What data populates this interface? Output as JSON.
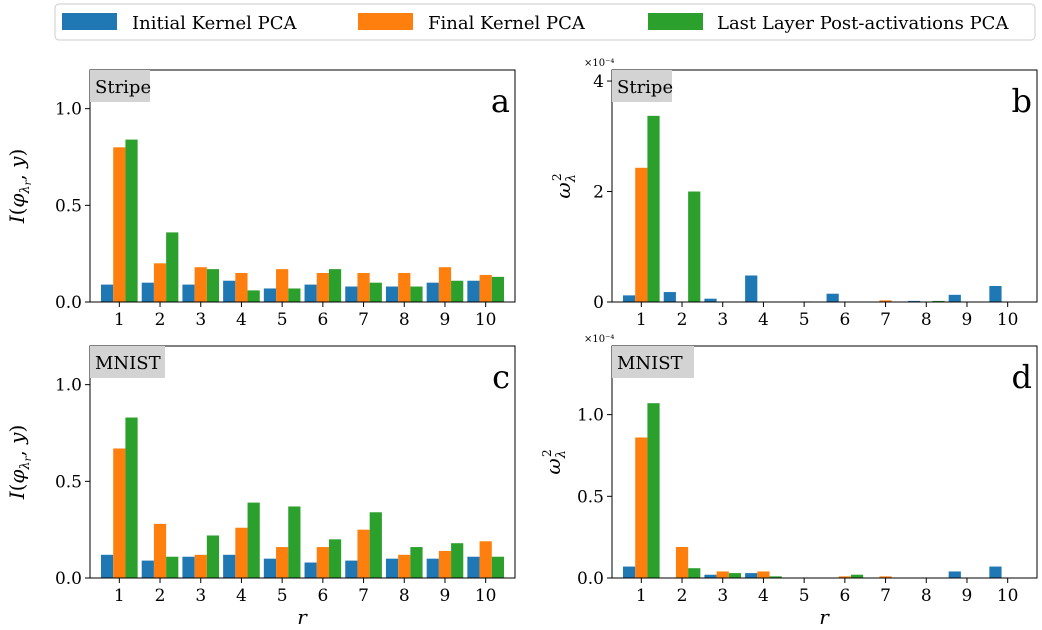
{
  "legend": {
    "items": [
      {
        "label": "Initial Kernel PCA",
        "color": "#1f77b4"
      },
      {
        "label": "Final Kernel PCA",
        "color": "#ff7f0e"
      },
      {
        "label": "Last Layer Post-activations PCA",
        "color": "#2ca02c"
      }
    ]
  },
  "chart_data": [
    {
      "type": "bar",
      "panel_letter": "a",
      "dataset_tag": "Stripe",
      "ylabel": "I(φ_λr, y)",
      "xlabel": "",
      "categories": [
        "1",
        "2",
        "3",
        "4",
        "5",
        "6",
        "7",
        "8",
        "9",
        "10"
      ],
      "ylim": [
        0,
        1.2
      ],
      "yticks": [
        0.0,
        0.5,
        1.0
      ],
      "ytick_labels": [
        "0.0",
        "0.5",
        "1.0"
      ],
      "exponent_label": "",
      "series": [
        {
          "name": "Initial Kernel PCA",
          "values": [
            0.09,
            0.1,
            0.09,
            0.11,
            0.07,
            0.09,
            0.08,
            0.08,
            0.1,
            0.11
          ]
        },
        {
          "name": "Final Kernel PCA",
          "values": [
            0.8,
            0.2,
            0.18,
            0.15,
            0.17,
            0.15,
            0.15,
            0.15,
            0.18,
            0.14
          ]
        },
        {
          "name": "Last Layer Post-activations PCA",
          "values": [
            0.84,
            0.36,
            0.17,
            0.06,
            0.07,
            0.17,
            0.1,
            0.08,
            0.11,
            0.13
          ]
        }
      ]
    },
    {
      "type": "bar",
      "panel_letter": "b",
      "dataset_tag": "Stripe",
      "ylabel": "ω²_λ",
      "xlabel": "",
      "categories": [
        "1",
        "2",
        "3",
        "4",
        "5",
        "6",
        "7",
        "8",
        "9",
        "10"
      ],
      "ylim": [
        0,
        4.2
      ],
      "yticks": [
        0,
        2,
        4
      ],
      "ytick_labels": [
        "0",
        "2",
        "4"
      ],
      "exponent_label": "×10⁻⁴",
      "series": [
        {
          "name": "Initial Kernel PCA",
          "values": [
            0.12,
            0.18,
            0.06,
            0.48,
            0.0,
            0.15,
            0.0,
            0.02,
            0.13,
            0.29
          ]
        },
        {
          "name": "Final Kernel PCA",
          "values": [
            2.43,
            0.0,
            0.0,
            0.0,
            0.01,
            0.0,
            0.03,
            0.0,
            0.0,
            0.0
          ]
        },
        {
          "name": "Last Layer Post-activations PCA",
          "values": [
            3.37,
            2.0,
            0.0,
            0.0,
            0.0,
            0.0,
            0.0,
            0.02,
            0.0,
            0.0
          ]
        }
      ]
    },
    {
      "type": "bar",
      "panel_letter": "c",
      "dataset_tag": "MNIST",
      "ylabel": "I(φ_λr, y)",
      "xlabel": "r",
      "categories": [
        "1",
        "2",
        "3",
        "4",
        "5",
        "6",
        "7",
        "8",
        "9",
        "10"
      ],
      "ylim": [
        0,
        1.2
      ],
      "yticks": [
        0.0,
        0.5,
        1.0
      ],
      "ytick_labels": [
        "0.0",
        "0.5",
        "1.0"
      ],
      "exponent_label": "",
      "series": [
        {
          "name": "Initial Kernel PCA",
          "values": [
            0.12,
            0.09,
            0.11,
            0.12,
            0.1,
            0.08,
            0.09,
            0.1,
            0.1,
            0.11
          ]
        },
        {
          "name": "Final Kernel PCA",
          "values": [
            0.67,
            0.28,
            0.12,
            0.26,
            0.16,
            0.16,
            0.25,
            0.12,
            0.14,
            0.19
          ]
        },
        {
          "name": "Last Layer Post-activations PCA",
          "values": [
            0.83,
            0.11,
            0.22,
            0.39,
            0.37,
            0.2,
            0.34,
            0.16,
            0.18,
            0.11
          ]
        }
      ]
    },
    {
      "type": "bar",
      "panel_letter": "d",
      "dataset_tag": "MNIST",
      "ylabel": "ω²_λ",
      "xlabel": "r",
      "categories": [
        "1",
        "2",
        "3",
        "4",
        "5",
        "6",
        "7",
        "8",
        "9",
        "10"
      ],
      "ylim": [
        0,
        1.42
      ],
      "yticks": [
        0.0,
        0.5,
        1.0
      ],
      "ytick_labels": [
        "0.0",
        "0.5",
        "1.0"
      ],
      "exponent_label": "×10⁻⁴",
      "series": [
        {
          "name": "Initial Kernel PCA",
          "values": [
            0.07,
            0.0,
            0.02,
            0.03,
            0.0,
            0.0,
            0.0,
            0.0,
            0.04,
            0.07
          ]
        },
        {
          "name": "Final Kernel PCA",
          "values": [
            0.86,
            0.19,
            0.04,
            0.04,
            0.0,
            0.01,
            0.01,
            0.0,
            0.0,
            0.0
          ]
        },
        {
          "name": "Last Layer Post-activations PCA",
          "values": [
            1.07,
            0.06,
            0.03,
            0.01,
            0.0,
            0.02,
            0.0,
            0.0,
            0.0,
            0.0
          ]
        }
      ]
    }
  ]
}
